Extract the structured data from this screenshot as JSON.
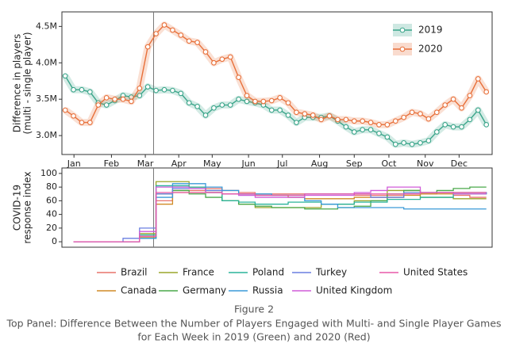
{
  "chart_data": [
    {
      "type": "line",
      "ylabel": [
        "Difference in players",
        "(multi - single player)"
      ],
      "x": [
        0,
        1,
        2,
        3,
        4,
        5,
        6,
        7,
        8,
        9,
        10,
        11,
        12,
        13,
        14,
        15,
        16,
        17,
        18,
        19,
        20,
        21,
        22,
        23,
        24,
        25,
        26,
        27,
        28,
        29,
        30,
        31,
        32,
        33,
        34,
        35,
        36,
        37,
        38,
        39,
        40,
        41,
        42,
        43,
        44,
        45,
        46,
        47,
        48,
        49,
        50,
        51
      ],
      "xlim": [
        -0.4,
        51.7
      ],
      "xticks": [
        {
          "value": 1.06,
          "label": "Jan"
        },
        {
          "value": 5.6,
          "label": "Feb"
        },
        {
          "value": 9.7,
          "label": "Mar"
        },
        {
          "value": 13.75,
          "label": "Apr"
        },
        {
          "value": 17.8,
          "label": "May"
        },
        {
          "value": 22.2,
          "label": "Jun"
        },
        {
          "value": 26.3,
          "label": "Jul"
        },
        {
          "value": 30.8,
          "label": "Aug"
        },
        {
          "value": 35,
          "label": "Sep"
        },
        {
          "value": 39.2,
          "label": "Oct"
        },
        {
          "value": 43.6,
          "label": "Nov"
        },
        {
          "value": 47.7,
          "label": "Dec"
        }
      ],
      "ylim": [
        2740000,
        4700000
      ],
      "yticks": [
        {
          "value": 3000000,
          "label": "3.0M"
        },
        {
          "value": 3500000,
          "label": "3.5M"
        },
        {
          "value": 4000000,
          "label": "4.0M"
        },
        {
          "value": 4500000,
          "label": "4.5M"
        }
      ],
      "vline": 10.7,
      "legend": "upper right",
      "series": [
        {
          "name": "2019",
          "color": "#3aa58a",
          "values": [
            3820000,
            3630000,
            3630000,
            3600000,
            3450000,
            3420000,
            3480000,
            3550000,
            3530000,
            3550000,
            3670000,
            3620000,
            3630000,
            3620000,
            3580000,
            3450000,
            3400000,
            3280000,
            3380000,
            3420000,
            3420000,
            3500000,
            3470000,
            3450000,
            3420000,
            3350000,
            3350000,
            3280000,
            3180000,
            3250000,
            3250000,
            3250000,
            3270000,
            3200000,
            3120000,
            3050000,
            3080000,
            3080000,
            3030000,
            2980000,
            2880000,
            2900000,
            2880000,
            2900000,
            2930000,
            3050000,
            3150000,
            3120000,
            3120000,
            3220000,
            3350000,
            3150000
          ]
        },
        {
          "name": "2020",
          "color": "#e8703a",
          "values": [
            3350000,
            3270000,
            3180000,
            3180000,
            3420000,
            3520000,
            3500000,
            3500000,
            3470000,
            3650000,
            4220000,
            4400000,
            4520000,
            4450000,
            4380000,
            4300000,
            4280000,
            4150000,
            4000000,
            4050000,
            4080000,
            3800000,
            3550000,
            3470000,
            3470000,
            3480000,
            3520000,
            3450000,
            3320000,
            3300000,
            3280000,
            3220000,
            3270000,
            3220000,
            3220000,
            3200000,
            3200000,
            3180000,
            3150000,
            3150000,
            3200000,
            3250000,
            3320000,
            3300000,
            3230000,
            3320000,
            3420000,
            3500000,
            3380000,
            3550000,
            3780000,
            3600000
          ]
        }
      ]
    },
    {
      "type": "step",
      "ylabel": [
        "COVID-19",
        "response index"
      ],
      "x": [
        1,
        3,
        5,
        7,
        9,
        11,
        13,
        15,
        17,
        19,
        21,
        23,
        25,
        27,
        29,
        31,
        33,
        35,
        37,
        39,
        41,
        43,
        45,
        47,
        49,
        51
      ],
      "xlim": [
        -0.4,
        51.7
      ],
      "ylim": [
        -8,
        108
      ],
      "yticks": [
        0,
        20,
        40,
        60,
        80,
        100
      ],
      "vline": 10.7,
      "series": [
        {
          "name": "Brazil",
          "color": "#e8736c",
          "values": [
            0,
            0,
            0,
            0,
            8,
            60,
            75,
            75,
            78,
            75,
            72,
            70,
            70,
            70,
            70,
            70,
            70,
            68,
            68,
            68,
            70,
            70,
            72,
            68,
            65,
            65
          ]
        },
        {
          "name": "Canada",
          "color": "#d08a26",
          "values": [
            0,
            0,
            0,
            0,
            6,
            55,
            72,
            72,
            72,
            70,
            70,
            68,
            68,
            65,
            63,
            63,
            63,
            65,
            65,
            65,
            68,
            70,
            70,
            72,
            72,
            72
          ]
        },
        {
          "name": "France",
          "color": "#9aa52a",
          "values": [
            0,
            0,
            0,
            0,
            12,
            88,
            88,
            80,
            75,
            60,
            55,
            50,
            50,
            50,
            50,
            55,
            55,
            60,
            60,
            75,
            75,
            65,
            65,
            63,
            63,
            63
          ]
        },
        {
          "name": "Germany",
          "color": "#4aa84a",
          "values": [
            0,
            0,
            0,
            0,
            5,
            70,
            75,
            70,
            65,
            60,
            55,
            52,
            50,
            50,
            48,
            48,
            50,
            52,
            60,
            70,
            75,
            72,
            75,
            78,
            80,
            80
          ]
        },
        {
          "name": "Poland",
          "color": "#2ab39a",
          "values": [
            0,
            0,
            0,
            0,
            10,
            82,
            82,
            80,
            72,
            60,
            58,
            55,
            55,
            58,
            58,
            55,
            55,
            58,
            58,
            62,
            62,
            65,
            65,
            70,
            70,
            72
          ]
        },
        {
          "name": "Russia",
          "color": "#3a9ad8",
          "values": [
            0,
            0,
            0,
            0,
            5,
            65,
            85,
            85,
            80,
            75,
            70,
            70,
            68,
            68,
            60,
            55,
            50,
            50,
            50,
            50,
            48,
            48,
            48,
            48,
            48,
            48
          ]
        },
        {
          "name": "Turkey",
          "color": "#6a7fe0",
          "values": [
            0,
            0,
            0,
            5,
            20,
            70,
            78,
            78,
            75,
            70,
            68,
            68,
            68,
            68,
            70,
            70,
            70,
            70,
            65,
            65,
            72,
            72,
            72,
            72,
            72,
            70
          ]
        },
        {
          "name": "United Kingdom",
          "color": "#d05bd8",
          "values": [
            0,
            0,
            0,
            0,
            15,
            80,
            80,
            78,
            72,
            70,
            68,
            65,
            65,
            65,
            68,
            68,
            68,
            72,
            75,
            80,
            80,
            72,
            72,
            70,
            70,
            70
          ]
        },
        {
          "name": "United States",
          "color": "#e858a8",
          "values": [
            0,
            0,
            0,
            0,
            8,
            72,
            72,
            72,
            72,
            70,
            70,
            68,
            68,
            68,
            70,
            70,
            70,
            70,
            70,
            70,
            70,
            72,
            72,
            72,
            72,
            72
          ]
        }
      ]
    }
  ],
  "caption": {
    "label": "Figure 2",
    "lines": [
      "Top Panel: Difference Between the Number of Players Engaged with Multi- and Single Player Games",
      "for Each Week in 2019 (Green) and 2020 (Red)"
    ]
  }
}
